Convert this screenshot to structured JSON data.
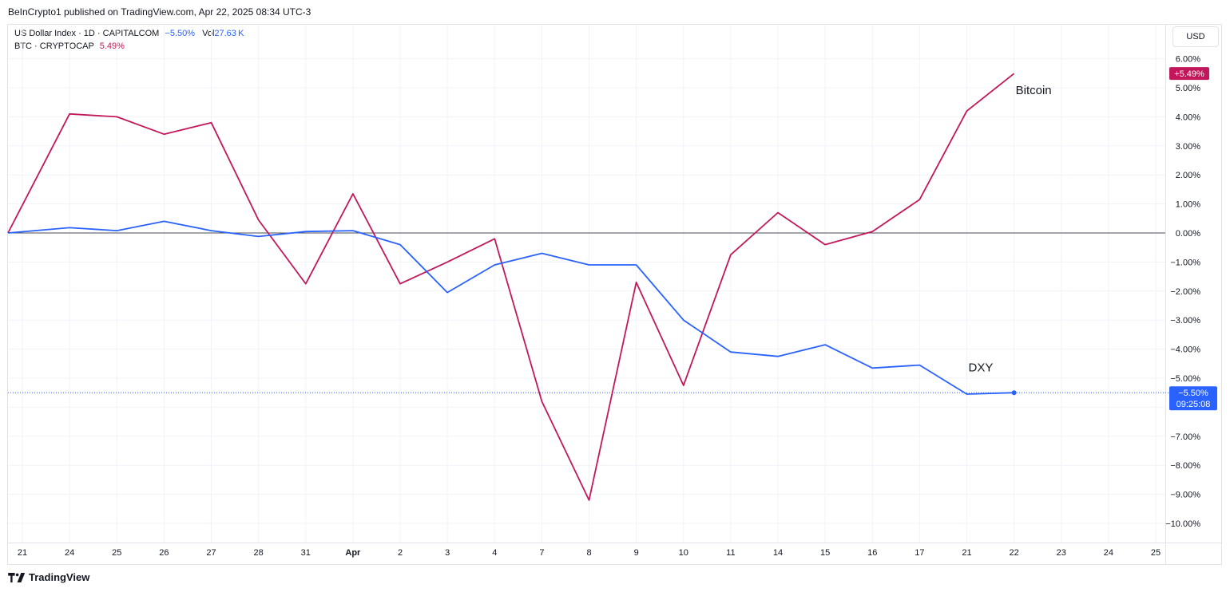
{
  "publisher_line": "BeInCrypto1 published on TradingView.com, Apr 22, 2025 08:34 UTC-3",
  "legend": {
    "row1": {
      "symbol": "US Dollar Index · 1D · CAPITALCOM",
      "change": "−5.50%",
      "vol_label": "Vol",
      "vol_value": "27.63 K"
    },
    "row2": {
      "symbol": "BTC · CRYPTOCAP",
      "change": "5.49%"
    }
  },
  "currency_button": "USD",
  "footer_brand": "TradingView",
  "colors": {
    "btc": "#c2185b",
    "dxy": "#2962ff",
    "grid": "#f0f3fa",
    "zero_line": "#131722",
    "text": "#131722"
  },
  "chart_data": {
    "type": "line",
    "x_tick_labels": [
      "21",
      "24",
      "25",
      "26",
      "27",
      "28",
      "31",
      "Apr",
      "2",
      "3",
      "4",
      "7",
      "8",
      "9",
      "10",
      "11",
      "14",
      "15",
      "16",
      "17",
      "21",
      "22",
      "23",
      "24",
      "25"
    ],
    "ylim": [
      -11,
      6.5
    ],
    "y_tick_values": [
      6,
      5,
      4,
      3,
      2,
      1,
      0,
      -1,
      -2,
      -3,
      -4,
      -5,
      -6,
      -7,
      -8,
      -9,
      -10
    ],
    "y_tick_labels": [
      "6.00%",
      "5.00%",
      "4.00%",
      "3.00%",
      "2.00%",
      "1.00%",
      "0.00%",
      "−1.00%",
      "−2.00%",
      "−3.00%",
      "−4.00%",
      "−5.00%",
      "",
      "−7.00%",
      "−8.00%",
      "−9.00%",
      "−10.00%"
    ],
    "series": [
      {
        "name": "Bitcoin",
        "color": "#c2185b",
        "values": [
          0,
          4.1,
          4.0,
          3.4,
          3.8,
          0.45,
          -1.75,
          1.35,
          -1.75,
          -1.0,
          -0.2,
          -5.8,
          -9.2,
          -1.7,
          -5.25,
          -0.75,
          0.7,
          -0.4,
          0.05,
          1.15,
          4.2,
          5.49
        ]
      },
      {
        "name": "DXY",
        "color": "#2962ff",
        "values": [
          0,
          0.18,
          0.08,
          0.4,
          0.08,
          -0.12,
          0.05,
          0.08,
          -0.4,
          -2.05,
          -1.1,
          -0.7,
          -1.1,
          -1.1,
          -3.0,
          -4.1,
          -4.25,
          -3.85,
          -4.65,
          -4.55,
          -5.55,
          -5.5
        ]
      }
    ],
    "annotations": [
      {
        "text": "Bitcoin",
        "series": "Bitcoin"
      },
      {
        "text": "DXY",
        "series": "DXY"
      }
    ],
    "price_badges": {
      "btc": {
        "text": "+5.49%"
      },
      "dxy": {
        "text": "−5.50%",
        "countdown": "09:25:08"
      }
    },
    "grid": true
  }
}
